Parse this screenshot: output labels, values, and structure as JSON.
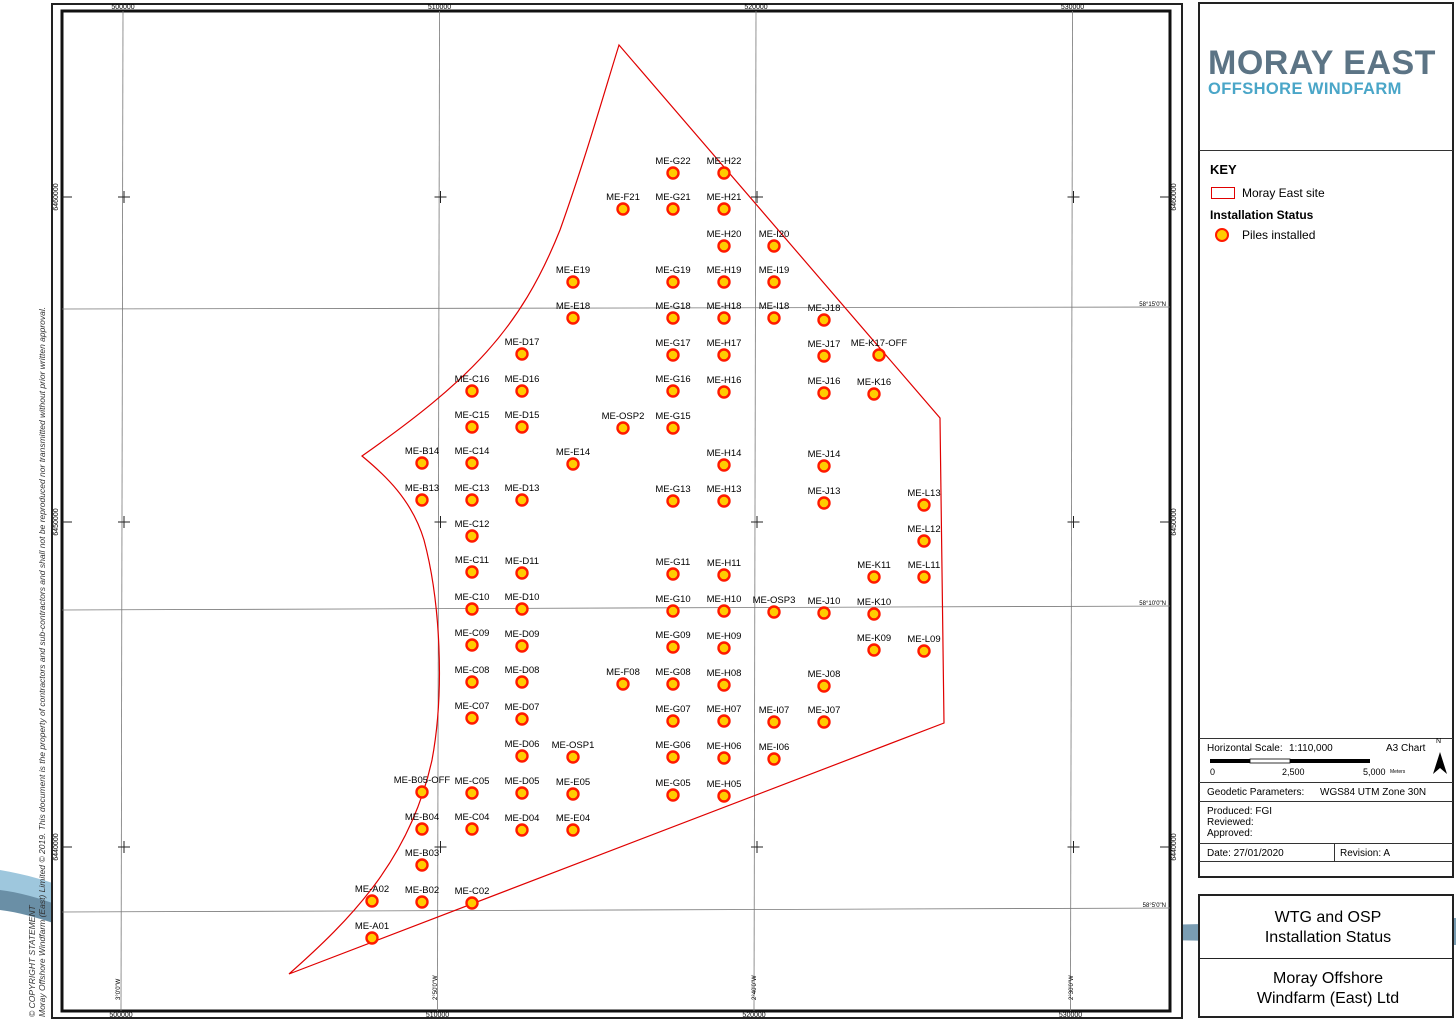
{
  "map": {
    "top_eastings": [
      {
        "label": "500000",
        "x": 500000
      },
      {
        "label": "510000",
        "x": 510000
      },
      {
        "label": "520000",
        "x": 520000
      },
      {
        "label": "530000",
        "x": 530000
      }
    ],
    "bottom_eastings": [
      {
        "label": "500000",
        "x": 500000
      },
      {
        "label": "510000",
        "x": 510000
      },
      {
        "label": "520000",
        "x": 520000
      },
      {
        "label": "530000",
        "x": 530000
      }
    ],
    "northings": [
      {
        "label": "6460000",
        "y": 6460000
      },
      {
        "label": "6450000",
        "y": 6450000
      },
      {
        "label": "6440000",
        "y": 6440000
      }
    ],
    "latitudes": [
      {
        "label": "58°15'0\"N"
      },
      {
        "label": "58°10'0\"N"
      },
      {
        "label": "58°5'0\"N"
      }
    ],
    "longitudes": [
      {
        "label": "3°0'0\"W"
      },
      {
        "label": "2°50'0\"W"
      },
      {
        "label": "2°40'0\"W"
      },
      {
        "label": "2°30'0\"W"
      }
    ],
    "turbines": [
      "ME-G22",
      "ME-H22",
      "ME-F21",
      "ME-G21",
      "ME-H21",
      "ME-H20",
      "ME-I20",
      "ME-E19",
      "ME-G19",
      "ME-H19",
      "ME-I19",
      "ME-E18",
      "ME-G18",
      "ME-H18",
      "ME-I18",
      "ME-J18",
      "ME-D17",
      "ME-G17",
      "ME-H17",
      "ME-J17",
      "ME-K17-OFF",
      "ME-C16",
      "ME-D16",
      "ME-G16",
      "ME-H16",
      "ME-J16",
      "ME-K16",
      "ME-C15",
      "ME-D15",
      "ME-OSP2",
      "ME-G15",
      "ME-B14",
      "ME-C14",
      "ME-E14",
      "ME-H14",
      "ME-J14",
      "ME-B13",
      "ME-C13",
      "ME-D13",
      "ME-G13",
      "ME-H13",
      "ME-J13",
      "ME-L13",
      "ME-C12",
      "ME-L12",
      "ME-C11",
      "ME-D11",
      "ME-G11",
      "ME-H11",
      "ME-K11",
      "ME-L11",
      "ME-C10",
      "ME-D10",
      "ME-G10",
      "ME-H10",
      "ME-OSP3",
      "ME-J10",
      "ME-K10",
      "ME-C09",
      "ME-D09",
      "ME-G09",
      "ME-H09",
      "ME-K09",
      "ME-L09",
      "ME-C08",
      "ME-D08",
      "ME-F08",
      "ME-G08",
      "ME-H08",
      "ME-J08",
      "ME-C07",
      "ME-D07",
      "ME-G07",
      "ME-H07",
      "ME-I07",
      "ME-J07",
      "ME-D06",
      "ME-OSP1",
      "ME-G06",
      "ME-H06",
      "ME-I06",
      "ME-B05-OFF",
      "ME-C05",
      "ME-D05",
      "ME-E05",
      "ME-G05",
      "ME-H05",
      "ME-B04",
      "ME-C04",
      "ME-D04",
      "ME-E04",
      "ME-B03",
      "ME-A02",
      "ME-B02",
      "ME-C02",
      "ME-A01"
    ]
  },
  "copyright": {
    "line1": "© COPYRIGHT STATEMENT",
    "line2": "Moray Offshore Windfarm (East) Limited © 2019. This document is the property of contractors and sub-contractors and shall not be reproduced nor transmitted without prior written approval."
  },
  "logo": {
    "line1": "MORAY EAST",
    "line2": "OFFSHORE WINDFARM"
  },
  "key": {
    "title": "KEY",
    "site_label": "Moray East site",
    "status_heading": "Installation Status",
    "piles_label": "Piles installed",
    "colors": {
      "site": "#e00000",
      "pile_fill": "#ffcc00",
      "pile_ring": "#ff1a00"
    }
  },
  "scale": {
    "horizontal_label": "Horizontal Scale:",
    "horizontal_value": "1:110,000",
    "paper": "A3 Chart",
    "ticks": [
      "0",
      "2,500",
      "5,000"
    ],
    "units": "Meters",
    "north": "N"
  },
  "meta": {
    "geodetic_label": "Geodetic Parameters:",
    "geodetic_value": "WGS84 UTM Zone 30N",
    "produced": "Produced: FGI",
    "reviewed": "Reviewed:",
    "approved": "Approved:",
    "date": "Date: 27/01/2020",
    "revision": "Revision: A"
  },
  "titles": {
    "title_line1": "WTG and OSP",
    "title_line2": "Installation Status",
    "company_line1": "Moray Offshore",
    "company_line2": "Windfarm (East) Ltd"
  }
}
